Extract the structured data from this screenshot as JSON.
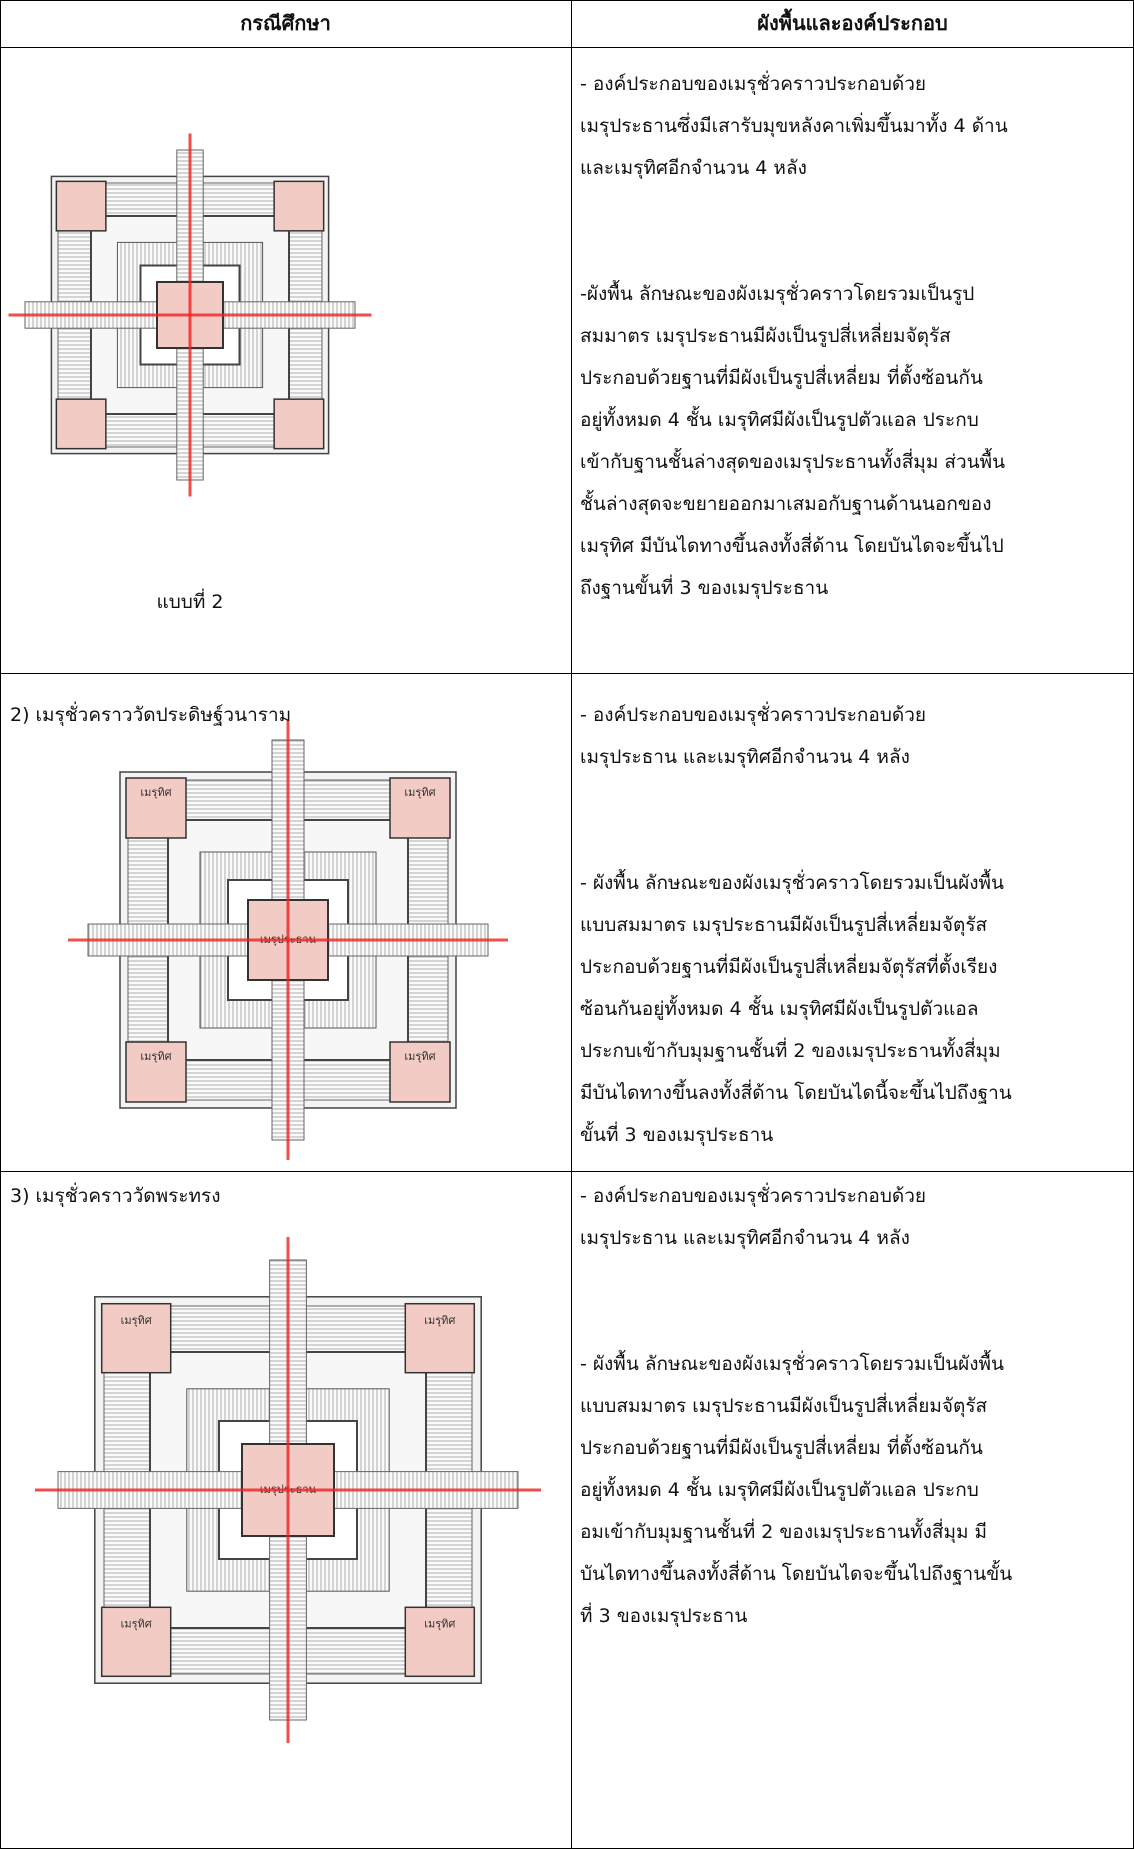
{
  "header": {
    "col1": "กรณีศึกษา",
    "col2": "ผังพื้นและองค์ประกอบ"
  },
  "rows": [
    {
      "caption": "แบบที่ 2",
      "description": [
        [
          "- องค์ประกอบของเมรุชั่วคราวประกอบด้วย",
          "เมรุประธานซึ่งมีเสารับมุขหลังคาเพิ่มขึ้นมาทั้ง 4 ด้าน",
          "และเมรุทิศอีกจำนวน 4 หลัง"
        ],
        [
          "-ผังพื้น  ลักษณะของผังเมรุชั่วคราวโดยรวมเป็นรูป",
          "สมมาตร  เมรุประธานมีผังเป็นรูปสี่เหลี่ยมจัตุรัส",
          "ประกอบด้วยฐานที่มีผังเป็นรูปสี่เหลี่ยม ที่ตั้งซ้อนกัน",
          "อยู่ทั้งหมด 4 ชั้น  เมรุทิศมีผังเป็นรูปตัวแอล  ประกบ",
          "เข้ากับฐานชั้นล่างสุดของเมรุประธานทั้งสี่มุม  ส่วนพื้น",
          "ชั้นล่างสุดจะขยายออกมาเสมอกับฐานด้านนอกของ",
          "เมรุทิศ  มีบันไดทางขึ้นลงทั้งสี่ด้าน  โดยบันไดจะขึ้นไป",
          "ถึงฐานขั้นที่ 3 ของเมรุประธาน"
        ]
      ]
    },
    {
      "title": "2) เมรุชั่วคราววัดประดิษฐ์วนาราม",
      "plan_labels": {
        "corner": "เมรุทิศ",
        "center": "เมรุประธาน"
      },
      "description": [
        [
          "- องค์ประกอบของเมรุชั่วคราวประกอบด้วย",
          "เมรุประธาน  และเมรุทิศอีกจำนวน 4 หลัง"
        ],
        [
          "- ผังพื้น  ลักษณะของผังเมรุชั่วคราวโดยรวมเป็นผังพื้น",
          "แบบสมมาตร  เมรุประธานมีผังเป็นรูปสี่เหลี่ยมจัตุรัส",
          "ประกอบด้วยฐานที่มีผังเป็นรูปสี่เหลี่ยมจัตุรัสที่ตั้งเรียง",
          "ซ้อนกันอยู่ทั้งหมด 4 ชั้น  เมรุทิศมีผังเป็นรูปตัวแอล",
          "ประกบเข้ากับมุมฐานชั้นที่ 2 ของเมรุประธานทั้งสี่มุม",
          "มีบันไดทางขึ้นลงทั้งสี่ด้าน  โดยบันไดนี้จะขึ้นไปถึงฐาน",
          "ขั้นที่ 3 ของเมรุประธาน"
        ]
      ]
    },
    {
      "title": "3) เมรุชั่วคราววัดพระทรง",
      "plan_labels": {
        "corner": "เมรุทิศ",
        "center": "เมรุประธาน"
      },
      "description": [
        [
          "- องค์ประกอบของเมรุชั่วคราวประกอบด้วย",
          "เมรุประธาน  และเมรุทิศอีกจำนวน 4 หลัง"
        ],
        [
          "- ผังพื้น  ลักษณะของผังเมรุชั่วคราวโดยรวมเป็นผังพื้น",
          "แบบสมมาตร  เมรุประธานมีผังเป็นรูปสี่เหลี่ยมจัตุรัส",
          "ประกอบด้วยฐานที่มีผังเป็นรูปสี่เหลี่ยม ที่ตั้งซ้อนกัน",
          "อยู่ทั้งหมด 4 ชั้น  เมรุทิศมีผังเป็นรูปตัวแอล  ประกบ",
          "อมเข้ากับมุมฐานชั้นที่ 2 ของเมรุประธานทั้งสี่มุม  มี",
          "บันไดทางขึ้นลงทั้งสี่ด้าน  โดยบันไดจะขึ้นไปถึงฐานขั้น",
          "ที่ 3 ของเมรุประธาน"
        ]
      ]
    }
  ]
}
